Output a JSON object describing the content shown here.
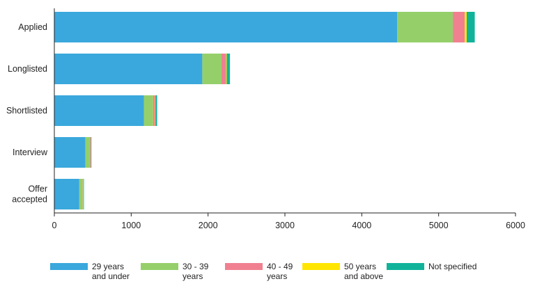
{
  "chart_data": {
    "type": "bar",
    "orientation": "horizontal",
    "stacked": true,
    "title": "",
    "xlabel": "",
    "ylabel": "",
    "categories": [
      "Applied",
      "Longlisted",
      "Shortlisted",
      "Interview",
      "Offer\naccepted"
    ],
    "series": [
      {
        "name": "29 years\nand under",
        "color": "#3aa8dc",
        "values": [
          4460,
          1925,
          1165,
          405,
          325
        ]
      },
      {
        "name": "30 - 39\nyears",
        "color": "#95cf6a",
        "values": [
          725,
          250,
          120,
          55,
          45
        ]
      },
      {
        "name": "40 - 49\nyears",
        "color": "#f08090",
        "values": [
          155,
          60,
          25,
          12,
          8
        ]
      },
      {
        "name": "50 years\nand above",
        "color": "#ffe500",
        "values": [
          25,
          8,
          5,
          3,
          2
        ]
      },
      {
        "name": "Not specified",
        "color": "#10b39a",
        "values": [
          105,
          42,
          22,
          8,
          5
        ]
      }
    ],
    "xlim": [
      0,
      6000
    ],
    "xticks": [
      0,
      1000,
      2000,
      3000,
      4000,
      5000,
      6000
    ],
    "grid": false,
    "legend_position": "bottom"
  }
}
